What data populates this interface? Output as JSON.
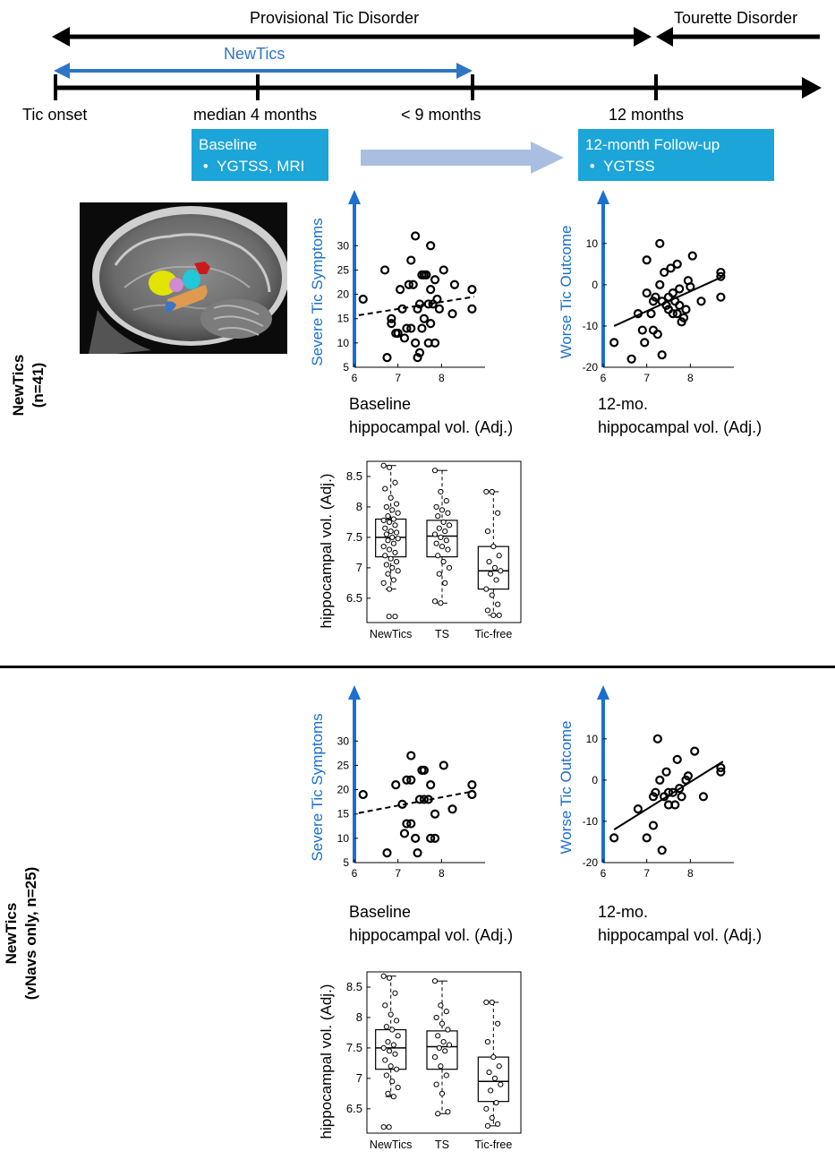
{
  "timeline": {
    "provisional_label": "Provisional Tic Disorder",
    "tourette_label": "Tourette Disorder",
    "newtics_label": "NewTics",
    "ticks": [
      "Tic onset",
      "median 4 months",
      "< 9 months",
      "12 months"
    ],
    "baseline_box": {
      "title": "Baseline",
      "bullet": "YGTSS, MRI"
    },
    "followup_box": {
      "title": "12-month Follow-up",
      "bullet": "YGTSS"
    }
  },
  "sections": [
    {
      "title": "NewTics",
      "subtitle": "(n=41)"
    },
    {
      "title": "NewTics",
      "subtitle": "(vNavs only, n=25)"
    }
  ],
  "colors": {
    "accent_blue": "#1b6fcf",
    "box_blue": "#1ba5d8",
    "timeline_blue": "#2f75c5"
  },
  "chart_data": [
    {
      "id": "s1",
      "type": "scatter",
      "ylabel": "Severe Tic Symptoms",
      "xlabel_line1": "Baseline",
      "xlabel_line2": "hippocampal vol. (Adj.)",
      "xlim": [
        6,
        9
      ],
      "ylim": [
        5,
        33
      ],
      "xticks": [
        6,
        7,
        8
      ],
      "yticks": [
        5,
        10,
        15,
        20,
        25,
        30
      ],
      "fit_line": {
        "x": [
          6.1,
          8.75
        ],
        "y": [
          15.7,
          19.5
        ],
        "style": "dashed"
      },
      "points": [
        [
          6.2,
          19
        ],
        [
          6.7,
          25
        ],
        [
          6.75,
          7
        ],
        [
          6.85,
          15
        ],
        [
          6.85,
          14
        ],
        [
          6.95,
          12
        ],
        [
          7.0,
          12
        ],
        [
          7.05,
          21
        ],
        [
          7.1,
          17
        ],
        [
          7.15,
          11
        ],
        [
          7.2,
          13
        ],
        [
          7.25,
          22
        ],
        [
          7.3,
          27
        ],
        [
          7.3,
          13
        ],
        [
          7.35,
          22
        ],
        [
          7.4,
          32
        ],
        [
          7.4,
          10
        ],
        [
          7.45,
          17
        ],
        [
          7.45,
          7
        ],
        [
          7.5,
          8
        ],
        [
          7.5,
          18
        ],
        [
          7.55,
          24
        ],
        [
          7.55,
          13
        ],
        [
          7.6,
          24
        ],
        [
          7.6,
          15
        ],
        [
          7.65,
          24
        ],
        [
          7.7,
          18
        ],
        [
          7.7,
          10
        ],
        [
          7.75,
          30
        ],
        [
          7.75,
          21
        ],
        [
          7.75,
          14
        ],
        [
          7.8,
          18
        ],
        [
          7.85,
          10
        ],
        [
          7.85,
          23
        ],
        [
          7.9,
          19
        ],
        [
          7.95,
          17
        ],
        [
          8.05,
          25
        ],
        [
          8.25,
          16
        ],
        [
          8.3,
          22
        ],
        [
          8.7,
          21
        ],
        [
          8.7,
          17
        ]
      ]
    },
    {
      "id": "s2",
      "type": "scatter",
      "ylabel": "Worse Tic Outcome",
      "xlabel_line1": "12-mo.",
      "xlabel_line2": "hippocampal vol. (Adj.)",
      "xlim": [
        6,
        9
      ],
      "ylim": [
        -20,
        13
      ],
      "xticks": [
        6,
        7,
        8
      ],
      "yticks": [
        -20,
        -10,
        0,
        10
      ],
      "fit_line": {
        "x": [
          6.25,
          8.75
        ],
        "y": [
          -10,
          2
        ],
        "style": "solid"
      },
      "points": [
        [
          6.25,
          -14
        ],
        [
          6.65,
          -18
        ],
        [
          6.8,
          -7
        ],
        [
          6.9,
          -11
        ],
        [
          6.95,
          -14
        ],
        [
          7.0,
          -2
        ],
        [
          7.0,
          6
        ],
        [
          7.1,
          -7
        ],
        [
          7.15,
          -11
        ],
        [
          7.15,
          -4
        ],
        [
          7.2,
          -3
        ],
        [
          7.25,
          -12
        ],
        [
          7.3,
          10
        ],
        [
          7.3,
          0
        ],
        [
          7.35,
          -17
        ],
        [
          7.35,
          -4
        ],
        [
          7.4,
          3
        ],
        [
          7.45,
          -5
        ],
        [
          7.5,
          -6
        ],
        [
          7.5,
          -3
        ],
        [
          7.55,
          4
        ],
        [
          7.6,
          -2
        ],
        [
          7.6,
          -7
        ],
        [
          7.65,
          -4
        ],
        [
          7.7,
          5
        ],
        [
          7.7,
          -7
        ],
        [
          7.75,
          -5
        ],
        [
          7.75,
          -1
        ],
        [
          7.8,
          -9
        ],
        [
          7.85,
          -8
        ],
        [
          7.9,
          -6
        ],
        [
          7.95,
          1
        ],
        [
          8.0,
          -0.5
        ],
        [
          8.05,
          7
        ],
        [
          8.25,
          -4
        ],
        [
          8.7,
          3
        ],
        [
          8.7,
          -3
        ],
        [
          8.7,
          2
        ]
      ]
    },
    {
      "id": "b1",
      "type": "box",
      "ylabel_line1": "Baseline",
      "ylabel_line2": "hippocampal vol. (Adj.)",
      "categories": [
        "NewTics",
        "TS",
        "Tic-free"
      ],
      "ylim": [
        6.1,
        8.75
      ],
      "yticks": [
        6.5,
        7,
        7.5,
        8,
        8.5
      ],
      "boxes": [
        {
          "q1": 7.18,
          "median": 7.5,
          "q3": 7.8,
          "whisker_low": 6.65,
          "whisker_high": 8.68,
          "outliers": [
            6.2
          ],
          "points": [
            8.68,
            8.65,
            8.4,
            8.3,
            8.15,
            8.05,
            8.0,
            7.95,
            7.9,
            7.85,
            7.8,
            7.78,
            7.75,
            7.7,
            7.65,
            7.6,
            7.58,
            7.55,
            7.5,
            7.48,
            7.45,
            7.4,
            7.35,
            7.3,
            7.25,
            7.2,
            7.15,
            7.1,
            7.05,
            7.0,
            6.95,
            6.9,
            6.8,
            6.75,
            6.65,
            6.2
          ]
        },
        {
          "q1": 7.18,
          "median": 7.52,
          "q3": 7.78,
          "whisker_low": 6.42,
          "whisker_high": 8.6,
          "outliers": [],
          "points": [
            8.6,
            8.25,
            8.1,
            8.0,
            7.95,
            7.9,
            7.85,
            7.75,
            7.7,
            7.65,
            7.6,
            7.55,
            7.5,
            7.45,
            7.4,
            7.35,
            7.3,
            7.2,
            7.1,
            7.0,
            6.9,
            6.75,
            6.45,
            6.42
          ]
        },
        {
          "q1": 6.65,
          "median": 6.95,
          "q3": 7.35,
          "whisker_low": 6.22,
          "whisker_high": 8.25,
          "outliers": [],
          "points": [
            8.25,
            8.25,
            7.9,
            7.6,
            7.35,
            7.2,
            7.1,
            7.0,
            6.95,
            6.9,
            6.8,
            6.65,
            6.55,
            6.4,
            6.3,
            6.22,
            6.22
          ]
        }
      ]
    },
    {
      "id": "s3",
      "type": "scatter",
      "ylabel": "Severe Tic Symptoms",
      "xlabel_line1": "Baseline",
      "xlabel_line2": "hippocampal vol. (Adj.)",
      "xlim": [
        6,
        9
      ],
      "ylim": [
        5,
        33
      ],
      "xticks": [
        6,
        7,
        8
      ],
      "yticks": [
        5,
        10,
        15,
        20,
        25,
        30
      ],
      "fit_line": {
        "x": [
          6.1,
          8.75
        ],
        "y": [
          15.2,
          19.7
        ],
        "style": "dashed"
      },
      "points": [
        [
          6.2,
          19
        ],
        [
          6.75,
          7
        ],
        [
          6.95,
          21
        ],
        [
          7.1,
          17
        ],
        [
          7.15,
          11
        ],
        [
          7.2,
          22
        ],
        [
          7.2,
          13
        ],
        [
          7.3,
          27
        ],
        [
          7.3,
          22
        ],
        [
          7.3,
          13
        ],
        [
          7.4,
          10
        ],
        [
          7.45,
          7
        ],
        [
          7.5,
          18
        ],
        [
          7.55,
          24
        ],
        [
          7.6,
          24
        ],
        [
          7.6,
          18
        ],
        [
          7.7,
          18
        ],
        [
          7.75,
          21
        ],
        [
          7.75,
          10
        ],
        [
          7.85,
          10
        ],
        [
          7.85,
          15
        ],
        [
          8.05,
          25
        ],
        [
          8.25,
          16
        ],
        [
          8.7,
          21
        ],
        [
          8.7,
          19
        ]
      ]
    },
    {
      "id": "s4",
      "type": "scatter",
      "ylabel": "Worse Tic Outcome",
      "xlabel_line1": "12-mo.",
      "xlabel_line2": "hippocampal vol. (Adj.)",
      "xlim": [
        6,
        9
      ],
      "ylim": [
        -20,
        13
      ],
      "xticks": [
        6,
        7,
        8
      ],
      "yticks": [
        -20,
        -10,
        0,
        10
      ],
      "fit_line": {
        "x": [
          6.25,
          8.75
        ],
        "y": [
          -12,
          4.5
        ],
        "style": "solid"
      },
      "points": [
        [
          6.25,
          -14
        ],
        [
          6.8,
          -7
        ],
        [
          7.0,
          -14
        ],
        [
          7.15,
          -11
        ],
        [
          7.15,
          -4
        ],
        [
          7.2,
          -3
        ],
        [
          7.25,
          10
        ],
        [
          7.3,
          0
        ],
        [
          7.35,
          -17
        ],
        [
          7.4,
          -4
        ],
        [
          7.45,
          2
        ],
        [
          7.5,
          -6
        ],
        [
          7.5,
          -3
        ],
        [
          7.6,
          -3
        ],
        [
          7.65,
          -6
        ],
        [
          7.7,
          5
        ],
        [
          7.75,
          -2
        ],
        [
          7.8,
          -4
        ],
        [
          7.9,
          0
        ],
        [
          7.95,
          1
        ],
        [
          8.1,
          7
        ],
        [
          8.3,
          -4
        ],
        [
          8.7,
          3
        ],
        [
          8.7,
          2
        ]
      ]
    },
    {
      "id": "b2",
      "type": "box",
      "ylabel_line1": "Baseline",
      "ylabel_line2": "hippocampal vol. (Adj.)",
      "categories": [
        "NewTics",
        "TS",
        "Tic-free"
      ],
      "ylim": [
        6.1,
        8.75
      ],
      "yticks": [
        6.5,
        7,
        7.5,
        8,
        8.5
      ],
      "boxes": [
        {
          "q1": 7.15,
          "median": 7.5,
          "q3": 7.8,
          "whisker_low": 6.7,
          "whisker_high": 8.68,
          "outliers": [
            6.2
          ],
          "points": [
            8.68,
            8.65,
            8.4,
            8.2,
            8.05,
            7.95,
            7.85,
            7.8,
            7.7,
            7.6,
            7.55,
            7.5,
            7.45,
            7.4,
            7.3,
            7.2,
            7.15,
            7.05,
            6.95,
            6.85,
            6.75,
            6.7,
            6.2
          ]
        },
        {
          "q1": 7.15,
          "median": 7.52,
          "q3": 7.78,
          "whisker_low": 6.42,
          "whisker_high": 8.6,
          "outliers": [],
          "points": [
            8.6,
            8.2,
            8.1,
            8.0,
            7.9,
            7.8,
            7.7,
            7.6,
            7.55,
            7.5,
            7.45,
            7.35,
            7.2,
            7.05,
            6.9,
            6.75,
            6.45,
            6.42
          ]
        },
        {
          "q1": 6.62,
          "median": 6.95,
          "q3": 7.35,
          "whisker_low": 6.22,
          "whisker_high": 8.25,
          "outliers": [],
          "points": [
            8.25,
            8.25,
            7.9,
            7.6,
            7.35,
            7.2,
            7.1,
            7.0,
            6.9,
            6.8,
            6.6,
            6.5,
            6.35,
            6.25,
            6.22
          ]
        }
      ]
    }
  ]
}
